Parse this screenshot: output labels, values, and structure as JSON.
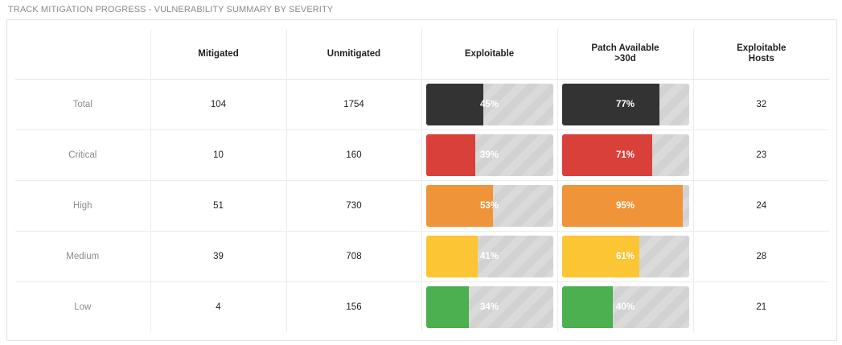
{
  "title": "TRACK MITIGATION PROGRESS - VULNERABILITY SUMMARY BY SEVERITY",
  "columns": {
    "label": "",
    "mitigated": "Mitigated",
    "unmitigated": "Unmitigated",
    "exploitable": "Exploitable",
    "patch_line1": "Patch Available",
    "patch_line2": ">30d",
    "hosts_line1": "Exploitable",
    "hosts_line2": "Hosts"
  },
  "rows": [
    {
      "label": "Total",
      "mitigated": "104",
      "unmitigated": "1754",
      "exploitable": "45%",
      "exploitable_fraction": 0.45,
      "patch": "77%",
      "patch_fraction": 0.77,
      "hosts": "32",
      "color": "#333333"
    },
    {
      "label": "Critical",
      "mitigated": "10",
      "unmitigated": "160",
      "exploitable": "39%",
      "exploitable_fraction": 0.39,
      "patch": "71%",
      "patch_fraction": 0.71,
      "hosts": "23",
      "color": "#d9403a"
    },
    {
      "label": "High",
      "mitigated": "51",
      "unmitigated": "730",
      "exploitable": "53%",
      "exploitable_fraction": 0.53,
      "patch": "95%",
      "patch_fraction": 0.95,
      "hosts": "24",
      "color": "#ef9438"
    },
    {
      "label": "Medium",
      "mitigated": "39",
      "unmitigated": "708",
      "exploitable": "41%",
      "exploitable_fraction": 0.41,
      "patch": "61%",
      "patch_fraction": 0.61,
      "hosts": "28",
      "color": "#fcc534"
    },
    {
      "label": "Low",
      "mitigated": "4",
      "unmitigated": "156",
      "exploitable": "34%",
      "exploitable_fraction": 0.34,
      "patch": "40%",
      "patch_fraction": 0.4,
      "hosts": "21",
      "color": "#4caf50"
    }
  ]
}
